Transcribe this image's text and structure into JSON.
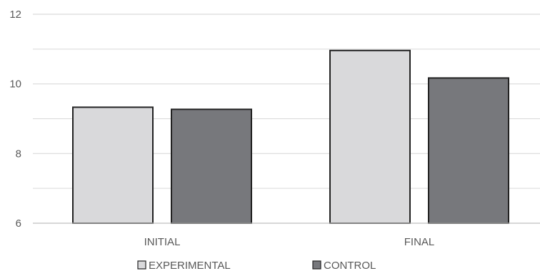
{
  "chart_data": {
    "type": "bar",
    "title": "",
    "xlabel": "",
    "ylabel": "",
    "categories": [
      "INITIAL",
      "FINAL"
    ],
    "ylim": [
      6,
      12
    ],
    "yticks": [
      6,
      8,
      10,
      12
    ],
    "grid": true,
    "legend_position": "bottom",
    "series": [
      {
        "name": "EXPERIMENTAL",
        "values": [
          9.33,
          10.96
        ],
        "color": "#d9d9db"
      },
      {
        "name": "CONTROL",
        "values": [
          9.27,
          10.17
        ],
        "color": "#77787c"
      }
    ]
  }
}
